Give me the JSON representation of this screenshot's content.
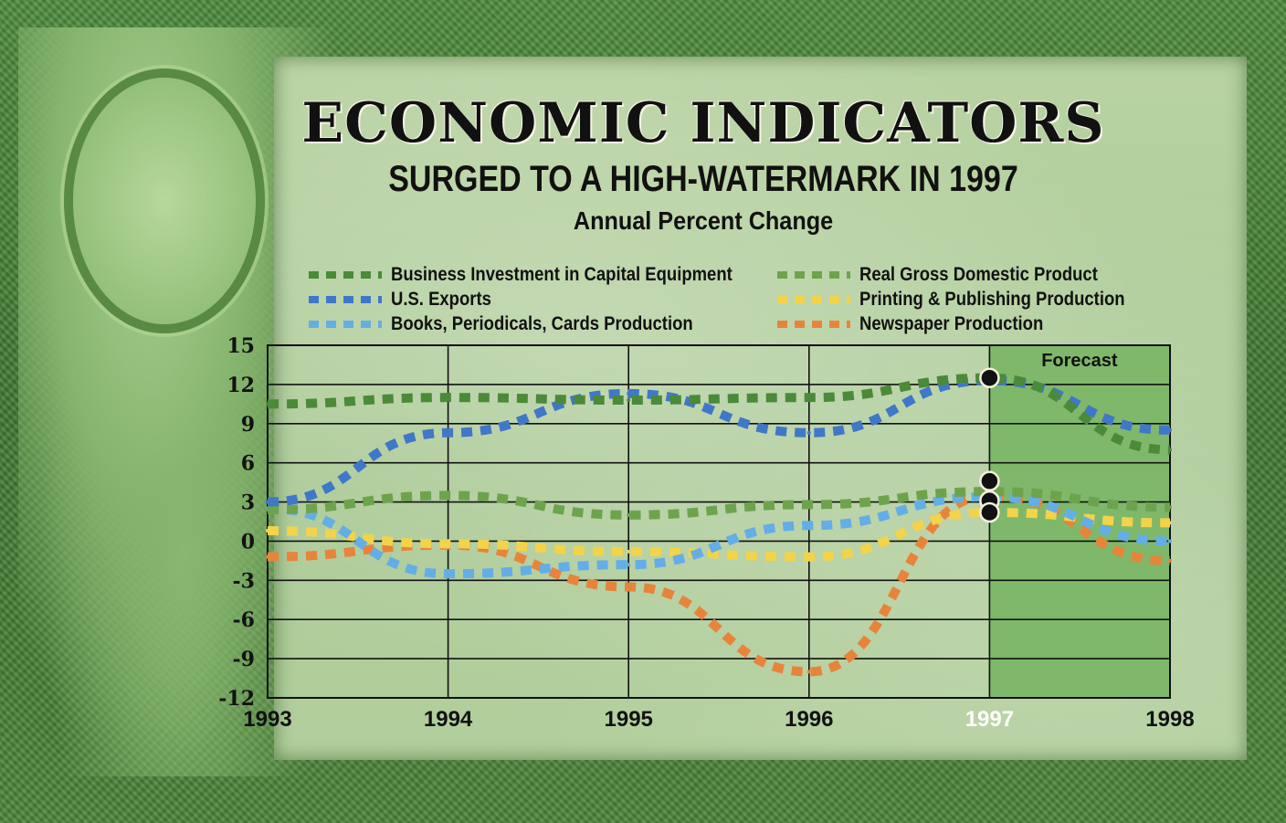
{
  "title": "ECONOMIC INDICATORS",
  "subtitle": "SURGED TO A HIGH-WATERMARK IN 1997",
  "unit_label": "Annual Percent Change",
  "forecast_label": "Forecast",
  "colors": {
    "business": "#4b8a38",
    "gdp": "#6ea34e",
    "exports": "#3f78c8",
    "printing": "#f2d34a",
    "books": "#63aee6",
    "newspaper": "#e8843a",
    "forecast_bg": "#7fb86a"
  },
  "chart_data": {
    "type": "line",
    "title": "ECONOMIC INDICATORS",
    "subtitle": "SURGED TO A HIGH-WATERMARK IN 1997",
    "ylabel": "Annual Percent Change",
    "x": [
      "1993",
      "1994",
      "1995",
      "1996",
      "1997",
      "1998"
    ],
    "y_ticks": [
      "15",
      "12",
      "9",
      "6",
      "3",
      "0",
      "-3",
      "-6",
      "-9",
      "-12"
    ],
    "ylim": [
      -12,
      15
    ],
    "forecast_region": [
      "1997",
      "1998"
    ],
    "grid": true,
    "legend": "top",
    "series": [
      {
        "name": "Business Investment in Capital Equipment",
        "key": "business",
        "values": [
          10.5,
          11.0,
          10.8,
          11.0,
          12.5,
          7.0
        ]
      },
      {
        "name": "U.S. Exports",
        "key": "exports",
        "values": [
          3.0,
          8.3,
          11.3,
          8.3,
          12.3,
          8.5
        ]
      },
      {
        "name": "Books, Periodicals, Cards Production",
        "key": "books",
        "values": [
          2.5,
          -2.5,
          -1.8,
          1.2,
          3.4,
          0.0
        ]
      },
      {
        "name": "Real Gross Domestic Product",
        "key": "gdp",
        "values": [
          2.4,
          3.5,
          2.0,
          2.8,
          3.8,
          2.6
        ]
      },
      {
        "name": "Printing & Publishing Production",
        "key": "printing",
        "values": [
          0.8,
          -0.2,
          -0.8,
          -1.2,
          2.2,
          1.4
        ]
      },
      {
        "name": "Newspaper Production",
        "key": "newspaper",
        "values": [
          -1.2,
          -0.3,
          -3.5,
          -10.0,
          3.5,
          -1.5
        ]
      }
    ]
  }
}
